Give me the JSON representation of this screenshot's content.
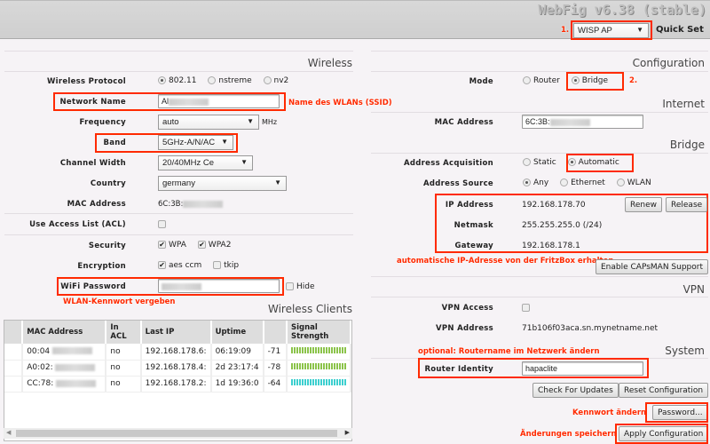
{
  "header": {
    "title": "WebFig v6.38 (stable)",
    "quickset_value": "WISP AP",
    "quickset_label": "Quick Set"
  },
  "annotations": {
    "step1": "1.",
    "step2": "2.",
    "ssid": "Name des WLANs (SSID)",
    "wifi_pw": "WLAN-Kennwort vergeben",
    "auto_ip": "automatische IP-Adresse von der FritzBox erhalten",
    "router_name": "optional: Routername im Netzwerk ändern",
    "password": "Kennwort ändern",
    "apply": "Änderungen speichern"
  },
  "wireless": {
    "section": "Wireless",
    "protocol": {
      "label": "Wireless Protocol",
      "options": [
        "802.11",
        "nstreme",
        "nv2"
      ],
      "selected": "802.11"
    },
    "network_name": {
      "label": "Network Name",
      "value": "Al"
    },
    "frequency": {
      "label": "Frequency",
      "value": "auto",
      "unit": "MHz"
    },
    "band": {
      "label": "Band",
      "value": "5GHz-A/N/AC"
    },
    "channel_width": {
      "label": "Channel Width",
      "value": "20/40MHz Ce"
    },
    "country": {
      "label": "Country",
      "value": "germany"
    },
    "mac": {
      "label": "MAC Address",
      "value": "6C:3B:"
    },
    "acl": {
      "label": "Use Access List (ACL)",
      "checked": false
    },
    "security": {
      "label": "Security",
      "options": [
        "WPA",
        "WPA2"
      ]
    },
    "encryption": {
      "label": "Encryption",
      "options": [
        "aes ccm",
        "tkip"
      ]
    },
    "wifi_password": {
      "label": "WiFi Password",
      "hide_label": "Hide"
    }
  },
  "clients": {
    "section": "Wireless Clients",
    "columns": [
      "",
      "MAC Address",
      "In ACL",
      "Last IP",
      "Uptime",
      "",
      "Signal Strength"
    ],
    "rows": [
      {
        "mac": "00:04",
        "acl": "no",
        "ip": "192.168.178.6:",
        "uptime": "06:19:09",
        "signal": "-71"
      },
      {
        "mac": "A0:02:",
        "acl": "no",
        "ip": "192.168.178.4:",
        "uptime": "2d 23:17:4",
        "signal": "-78"
      },
      {
        "mac": "CC:78:",
        "acl": "no",
        "ip": "192.168.178.2:",
        "uptime": "1d 19:36:0",
        "signal": "-64"
      }
    ]
  },
  "configuration": {
    "section": "Configuration",
    "mode": {
      "label": "Mode",
      "options": [
        "Router",
        "Bridge"
      ],
      "selected": "Bridge"
    }
  },
  "internet": {
    "section": "Internet",
    "mac": {
      "label": "MAC Address",
      "value": "6C:3B:"
    }
  },
  "bridge": {
    "section": "Bridge",
    "acquisition": {
      "label": "Address Acquisition",
      "options": [
        "Static",
        "Automatic"
      ],
      "selected": "Automatic"
    },
    "source": {
      "label": "Address Source",
      "options": [
        "Any",
        "Ethernet",
        "WLAN"
      ],
      "selected": "Any"
    },
    "ip": {
      "label": "IP Address",
      "value": "192.168.178.70",
      "renew": "Renew",
      "release": "Release"
    },
    "netmask": {
      "label": "Netmask",
      "value": "255.255.255.0 (/24)"
    },
    "gateway": {
      "label": "Gateway",
      "value": "192.168.178.1"
    },
    "capsman": "Enable CAPsMAN Support"
  },
  "vpn": {
    "section": "VPN",
    "access": {
      "label": "VPN Access"
    },
    "address": {
      "label": "VPN Address",
      "value": "71b106f03aca.sn.mynetname.net"
    }
  },
  "system": {
    "section": "System",
    "identity": {
      "label": "Router Identity",
      "value": "hapaclite"
    },
    "check_updates": "Check For Updates",
    "reset": "Reset Configuration",
    "password": "Password...",
    "apply": "Apply Configuration"
  }
}
